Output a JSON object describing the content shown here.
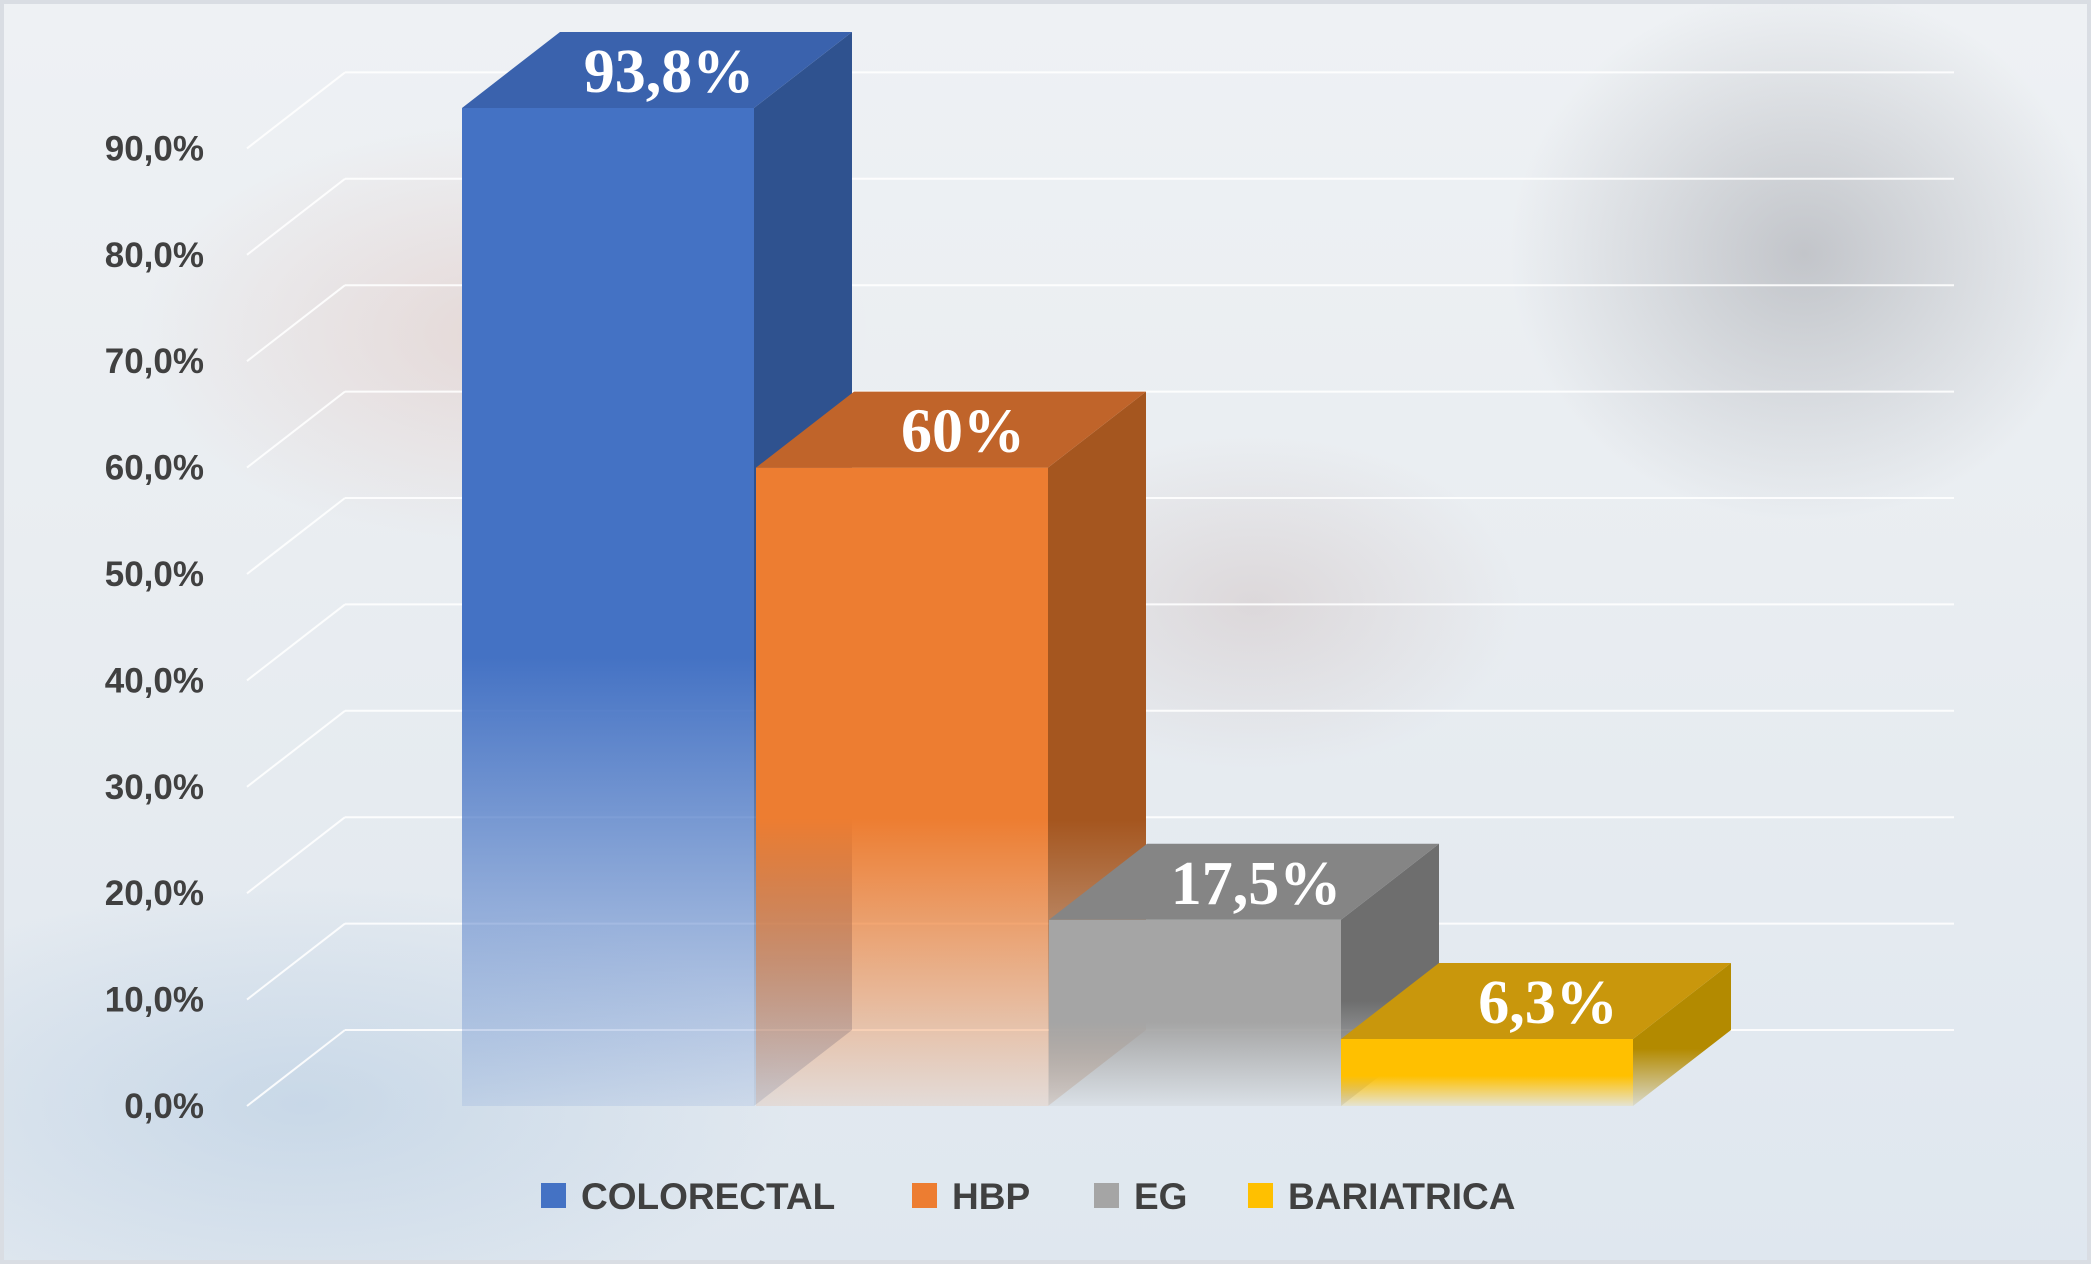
{
  "chart_data": {
    "type": "bar",
    "categories": [
      "COLORECTAL",
      "HBP",
      "EG",
      "BARIATRICA"
    ],
    "values": [
      93.8,
      60,
      17.5,
      6.3
    ],
    "data_labels": [
      "93,8%",
      "60%",
      "17,5%",
      "6,3%"
    ],
    "ylim": [
      0,
      90
    ],
    "yticks": [
      "0,0%",
      "10,0%",
      "20,0%",
      "30,0%",
      "40,0%",
      "50,0%",
      "60,0%",
      "70,0%",
      "80,0%",
      "90,0%"
    ],
    "grid": true,
    "legend_position": "bottom",
    "style": "3d-column",
    "colors": {
      "COLORECTAL": {
        "front": "#4472c4",
        "side": "#2f528f",
        "top": "#3a62ad"
      },
      "HBP": {
        "front": "#ed7d31",
        "side": "#a5561f",
        "top": "#c0642a"
      },
      "EG": {
        "front": "#a5a5a5",
        "side": "#6e6e6e",
        "top": "#858585"
      },
      "BARIATRICA": {
        "front": "#ffc000",
        "side": "#b38a00",
        "top": "#c9970c"
      }
    },
    "gridline_color": "#ffffff",
    "text_color": "#404040"
  }
}
